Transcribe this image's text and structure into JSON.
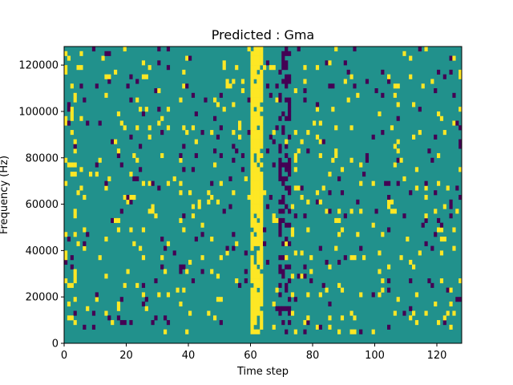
{
  "chart_data": {
    "type": "heatmap",
    "title": "Predicted : Gma",
    "xlabel": "Time step",
    "ylabel": "Frequency (Hz)",
    "xlim": [
      0,
      128
    ],
    "ylim": [
      0,
      128000
    ],
    "x_ticks": [
      0,
      20,
      40,
      60,
      80,
      100,
      120
    ],
    "y_ticks": [
      0,
      20000,
      40000,
      60000,
      80000,
      100000,
      120000
    ],
    "y_tick_labels": [
      "0",
      "20000",
      "40000",
      "60000",
      "80000",
      "100000",
      "120000"
    ],
    "n_time_steps": 128,
    "n_frequency_bins": 64,
    "colormap": "viridis",
    "colors": {
      "background_value": "#21918c",
      "low_value": "#440154",
      "high_value": "#fde725"
    },
    "grid": false,
    "legend": "none"
  }
}
